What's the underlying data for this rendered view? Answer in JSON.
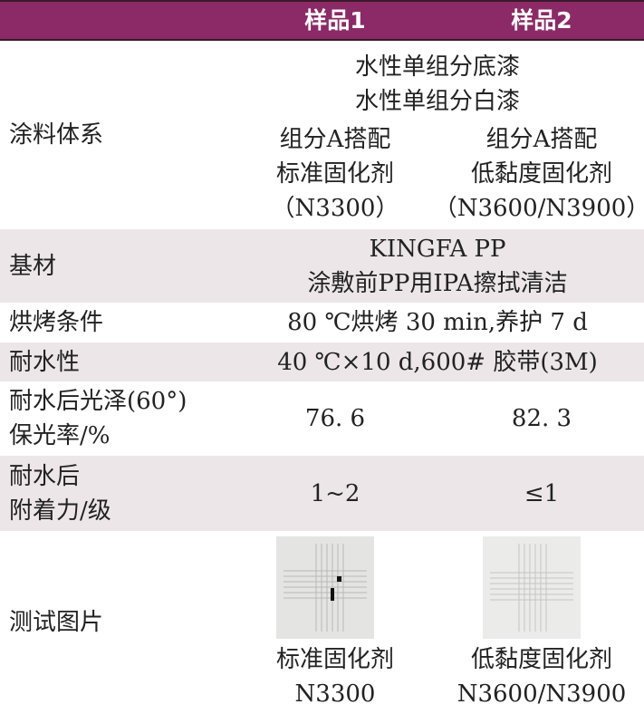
{
  "header": {
    "sample1": "样品1",
    "sample2": "样品2"
  },
  "rows": {
    "coating": {
      "label": "涂料体系",
      "shared": [
        "水性单组分底漆",
        "水性单组分白漆"
      ],
      "s1": [
        "组分A搭配",
        "标准固化剂",
        "（N3300）"
      ],
      "s2": [
        "组分A搭配",
        "低黏度固化剂",
        "（N3600/N3900）"
      ]
    },
    "substrate": {
      "label": "基材",
      "shared": [
        "KINGFA PP",
        "涂敷前PP用IPA擦拭清洁"
      ]
    },
    "baking": {
      "label": "烘烤条件",
      "value": "80 ℃烘烤 30 min,养护 7 d"
    },
    "water": {
      "label": "耐水性",
      "value": "40 ℃×10 d,600# 胶带(3M)"
    },
    "gloss": {
      "label": [
        "耐水后光泽(60°)",
        "保光率/%"
      ],
      "s1": "76. 6",
      "s2": "82. 3"
    },
    "adhesion": {
      "label": [
        "耐水后",
        "附着力/级"
      ],
      "s1": "1~2",
      "s2": "≤1"
    },
    "images": {
      "label": "测试图片",
      "s1": [
        "标准固化剂",
        "N3300"
      ],
      "s2": [
        "低黏度固化剂",
        "N3600/N3900"
      ]
    }
  },
  "colors": {
    "header": "#8b2a66",
    "shade": "#ece6e8"
  }
}
